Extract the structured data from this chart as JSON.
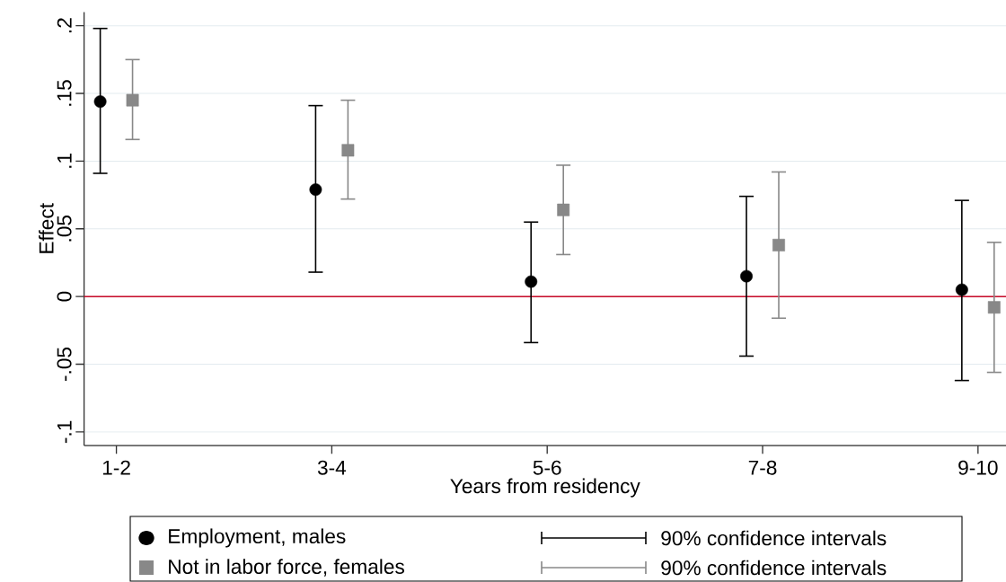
{
  "chart_data": {
    "type": "scatter",
    "xlabel": "Years from residency",
    "ylabel": "Effect",
    "categories": [
      "1-2",
      "3-4",
      "5-6",
      "7-8",
      "9-10"
    ],
    "ylim": [
      -0.11,
      0.21
    ],
    "yticks": [
      {
        "value": -0.1,
        "label": "-.1"
      },
      {
        "value": -0.05,
        "label": "-.05"
      },
      0,
      {
        "value": 0.05,
        "label": ".05"
      },
      {
        "value": 0.1,
        "label": ".1"
      },
      {
        "value": 0.15,
        "label": ".15"
      },
      {
        "value": 0.2,
        "label": ".2"
      }
    ],
    "grid": "y",
    "legend": "bottom",
    "ref_lines": [
      {
        "axis": "y",
        "value": 0,
        "color": "#c8102e"
      }
    ],
    "annotations": [
      "90% confidence intervals",
      "90% confidence intervals"
    ],
    "series": [
      {
        "name": "Employment, males",
        "color": "#000000",
        "marker": "circle",
        "values": [
          0.144,
          0.079,
          0.011,
          0.015,
          0.005
        ],
        "errors": [
          [
            0.091,
            0.198
          ],
          [
            0.018,
            0.141
          ],
          [
            -0.034,
            0.055
          ],
          [
            -0.044,
            0.074
          ],
          [
            -0.062,
            0.071
          ]
        ]
      },
      {
        "name": "Not in labor force, females",
        "color": "#888888",
        "marker": "square",
        "values": [
          0.145,
          0.108,
          0.064,
          0.038,
          -0.008
        ],
        "errors": [
          [
            0.116,
            0.175
          ],
          [
            0.072,
            0.145
          ],
          [
            0.031,
            0.097
          ],
          [
            -0.016,
            0.092
          ],
          [
            -0.056,
            0.04
          ]
        ]
      }
    ]
  }
}
